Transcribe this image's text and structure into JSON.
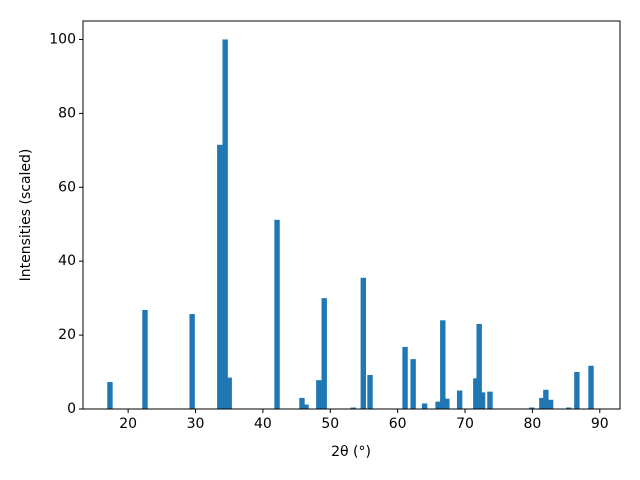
{
  "chart_data": {
    "type": "bar",
    "x_label": "2θ (°)",
    "y_label": "Intensities (scaled)",
    "x": [
      17.3,
      22.5,
      29.5,
      33.6,
      34.4,
      35.0,
      42.1,
      45.8,
      46.4,
      48.3,
      49.1,
      53.4,
      54.9,
      55.9,
      61.1,
      62.3,
      64.0,
      66.0,
      66.7,
      67.3,
      69.2,
      71.6,
      72.1,
      72.6,
      73.7,
      79.9,
      81.4,
      82.0,
      82.7,
      85.4,
      86.6,
      88.7
    ],
    "values": [
      7.3,
      26.8,
      25.7,
      71.5,
      100,
      8.5,
      51.2,
      3,
      1.2,
      7.8,
      30,
      0.4,
      35.5,
      9.2,
      16.8,
      13.5,
      1.5,
      2,
      24,
      2.8,
      5,
      8.3,
      23,
      4.5,
      4.7,
      0.4,
      3,
      5.2,
      2.5,
      0.4,
      10,
      11.7
    ],
    "color": "#1f77b4",
    "xlim": [
      13.3,
      93.0
    ],
    "ylim": [
      0,
      105
    ],
    "xticks": [
      20,
      30,
      40,
      50,
      60,
      70,
      80,
      90
    ],
    "yticks": [
      0,
      20,
      40,
      60,
      80,
      100
    ]
  }
}
